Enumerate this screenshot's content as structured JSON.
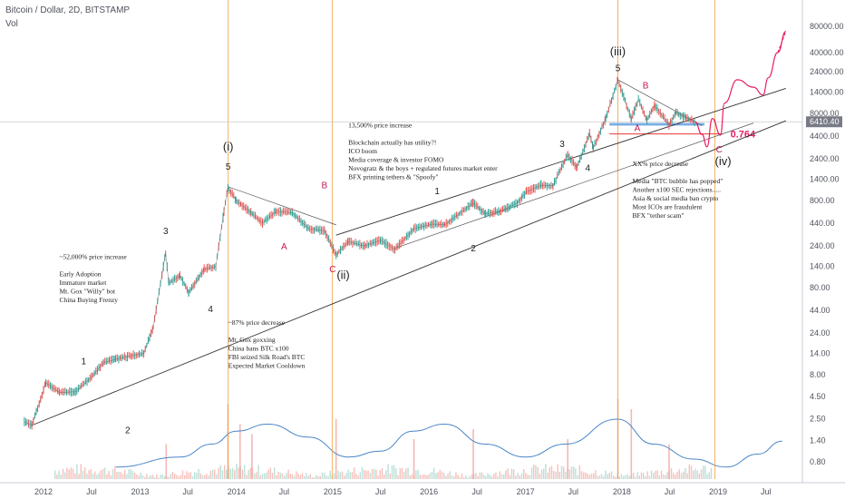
{
  "header": {
    "title": "Bitcoin / Dollar, 2D, BITSTAMP",
    "subtitle": "Vol"
  },
  "price_label": "6410.40",
  "chart_data": {
    "type": "line",
    "y_scale": "log",
    "y_ticks": [
      "80000.00",
      "40000.00",
      "24000.00",
      "14000.00",
      "8000.00",
      "4400.00",
      "2400.00",
      "1400.00",
      "800.00",
      "440.00",
      "240.00",
      "140.00",
      "80.00",
      "44.00",
      "24.00",
      "14.00",
      "8.00",
      "4.50",
      "2.50",
      "1.40",
      "0.80"
    ],
    "x_ticks": [
      "2012",
      "Jul",
      "2013",
      "Jul",
      "2014",
      "Jul",
      "2015",
      "Jul",
      "2016",
      "Jul",
      "2017",
      "Jul",
      "2018",
      "Jul",
      "2019",
      "Jul"
    ],
    "current_price": 6410.4,
    "series": [
      {
        "x": [
          "2011-10-20",
          "2011-11-18",
          "2012-01-10",
          "2012-03-01",
          "2012-05-01",
          "2012-07-01",
          "2012-08-15",
          "2012-10-01",
          "2012-12-01",
          "2013-01-15",
          "2013-02-20",
          "2013-04-08",
          "2013-04-20",
          "2013-06-01",
          "2013-07-05",
          "2013-09-01",
          "2013-10-15",
          "2013-11-15",
          "2013-11-30",
          "2014-01-01",
          "2014-02-25",
          "2014-04-10",
          "2014-06-01",
          "2014-08-01",
          "2014-10-01",
          "2014-12-01",
          "2015-01-14",
          "2015-03-01",
          "2015-05-01",
          "2015-07-01",
          "2015-08-25",
          "2015-11-05",
          "2016-01-15",
          "2016-03-01",
          "2016-06-17",
          "2016-08-02",
          "2016-10-01",
          "2016-12-01",
          "2017-01-04",
          "2017-03-01",
          "2017-04-15",
          "2017-06-10",
          "2017-07-15",
          "2017-09-01",
          "2017-09-15",
          "2017-11-01",
          "2017-12-17",
          "2018-02-06",
          "2018-03-05",
          "2018-04-06",
          "2018-05-05",
          "2018-06-29",
          "2018-07-25",
          "2018-09-01",
          "2018-10-05"
        ],
        "y": [
          2.3,
          2.1,
          6.5,
          5.0,
          5.1,
          7.5,
          11.0,
          12.0,
          13.3,
          14.0,
          28,
          200,
          90,
          110,
          70,
          130,
          140,
          600,
          1130,
          800,
          580,
          440,
          600,
          580,
          380,
          360,
          190,
          270,
          240,
          280,
          220,
          380,
          430,
          420,
          750,
          560,
          610,
          750,
          1000,
          1200,
          1180,
          2700,
          1900,
          4700,
          3200,
          7000,
          19500,
          6900,
          11500,
          6600,
          9900,
          5900,
          8200,
          7100,
          6410
        ]
      },
      {
        "name": "projection",
        "x": [
          "2018-10-05",
          "2018-11-01",
          "2018-11-20",
          "2018-12-10",
          "2019-01-10",
          "2019-01-25",
          "2019-03-15",
          "2019-05-15",
          "2019-06-20",
          "2019-07-10",
          "2019-08-15",
          "2019-09-15"
        ],
        "y": [
          6410,
          4600,
          3300,
          7000,
          4500,
          10500,
          19500,
          16000,
          13000,
          20500,
          40000,
          70000
        ]
      }
    ],
    "volume": [
      {
        "x": "2013-04-10",
        "v": 0.35
      },
      {
        "x": "2013-11-30",
        "v": 0.75
      },
      {
        "x": "2014-01-15",
        "v": 0.55
      },
      {
        "x": "2014-03-01",
        "v": 0.45
      },
      {
        "x": "2015-01-14",
        "v": 0.6
      },
      {
        "x": "2015-11-05",
        "v": 0.4
      },
      {
        "x": "2016-06-17",
        "v": 0.5
      },
      {
        "x": "2017-06-10",
        "v": 0.4
      },
      {
        "x": "2017-12-17",
        "v": 0.8
      },
      {
        "x": "2018-02-06",
        "v": 0.7
      },
      {
        "x": "2018-06-29",
        "v": 0.35
      }
    ],
    "volume_ma": {
      "x": [
        "2012-10-01",
        "2013-06-01",
        "2013-10-01",
        "2014-01-01",
        "2014-05-01",
        "2014-10-01",
        "2015-03-01",
        "2015-07-01",
        "2015-11-01",
        "2016-03-01",
        "2016-08-01",
        "2017-01-01",
        "2017-06-01",
        "2017-12-15",
        "2018-05-01",
        "2018-10-01",
        "2019-02-01",
        "2019-06-01",
        "2019-09-01"
      ],
      "v": [
        0.12,
        0.22,
        0.35,
        0.48,
        0.55,
        0.42,
        0.22,
        0.28,
        0.48,
        0.55,
        0.35,
        0.22,
        0.35,
        0.6,
        0.35,
        0.2,
        0.12,
        0.25,
        0.38
      ]
    },
    "vertical_markers": [
      "2013-12-01",
      "2014-12-30",
      "2017-12-17",
      "2018-12-20"
    ],
    "trendlines": [
      {
        "from": {
          "x": "2011-11-18",
          "y": 2.1
        },
        "to": {
          "x": "2019-09-15",
          "y": 6600
        }
      },
      {
        "from": {
          "x": "2015-01-14",
          "y": 320
        },
        "to": {
          "x": "2019-09-15",
          "y": 15500
        }
      },
      {
        "from": {
          "x": "2013-12-01",
          "y": 1150
        },
        "to": {
          "x": "2015-01-14",
          "y": 420
        }
      },
      {
        "from": {
          "x": "2015-09-01",
          "y": 230
        },
        "to": {
          "x": "2019-05-15",
          "y": 6200
        }
      },
      {
        "from": {
          "x": "2017-12-17",
          "y": 19500
        },
        "to": {
          "x": "2018-11-01",
          "y": 5800
        }
      }
    ],
    "levels": [
      {
        "y": 6000,
        "from": "2017-11-15",
        "to": "2018-11-10",
        "label": "0.764"
      },
      {
        "y": 4650,
        "from": "2017-11-15",
        "to": "2019-01-20"
      }
    ],
    "wave_labels": [
      {
        "text": "1",
        "x": "2012-06-01",
        "y": 10.5,
        "kind": "small"
      },
      {
        "text": "2",
        "x": "2012-11-15",
        "y": 1.7,
        "kind": "small"
      },
      {
        "text": "3",
        "x": "2013-04-08",
        "y": 330,
        "kind": "small"
      },
      {
        "text": "4",
        "x": "2013-09-25",
        "y": 42,
        "kind": "small"
      },
      {
        "text": "5",
        "x": "2013-12-01",
        "y": 1800,
        "kind": "small"
      },
      {
        "text": "(i)",
        "x": "2013-12-01",
        "y": 3000,
        "kind": "big"
      },
      {
        "text": "A",
        "x": "2014-07-01",
        "y": 220,
        "kind": "corr"
      },
      {
        "text": "B",
        "x": "2014-12-01",
        "y": 1100,
        "kind": "corr"
      },
      {
        "text": "C",
        "x": "2015-01-01",
        "y": 120,
        "kind": "corr"
      },
      {
        "text": "(ii)",
        "x": "2015-02-10",
        "y": 100,
        "kind": "big"
      },
      {
        "text": "1",
        "x": "2016-02-01",
        "y": 950,
        "kind": "small"
      },
      {
        "text": "2",
        "x": "2016-06-17",
        "y": 210,
        "kind": "small"
      },
      {
        "text": "3",
        "x": "2017-05-20",
        "y": 3300,
        "kind": "small"
      },
      {
        "text": "4",
        "x": "2017-08-25",
        "y": 1750,
        "kind": "small"
      },
      {
        "text": "5",
        "x": "2017-12-17",
        "y": 24500,
        "kind": "small"
      },
      {
        "text": "(iii)",
        "x": "2017-12-17",
        "y": 37000,
        "kind": "big"
      },
      {
        "text": "A",
        "x": "2018-03-01",
        "y": 5000,
        "kind": "corr"
      },
      {
        "text": "B",
        "x": "2018-04-01",
        "y": 15500,
        "kind": "corr"
      },
      {
        "text": "C",
        "x": "2019-01-05",
        "y": 2850,
        "kind": "corr"
      },
      {
        "text": "(iv)",
        "x": "2019-01-20",
        "y": 2050,
        "kind": "big"
      }
    ],
    "annotations": [
      {
        "lines": [
          "~52,000% price increase",
          "",
          "Early Adoption",
          "Immature market",
          "Mt. Gox \"Willy\" bot",
          "China Buying Frenzy"
        ],
        "x": "2012-03-01",
        "y": 170
      },
      {
        "lines": [
          "~87% price decrease",
          "",
          "Mt. Gox goxxing",
          "China bans BTC x100",
          "FBI seized Silk Road's BTC",
          "Expected Market Cooldown"
        ],
        "x": "2013-12-01",
        "y": 30
      },
      {
        "lines": [
          "13,500% price increase",
          "",
          "Blockchain actually has utility?!",
          "ICO boom",
          "Media coverage & investor FOMO",
          "Novogratz & the boys + regulated futures market enter",
          "BFX printing tethers & \"Spoofy\""
        ],
        "x": "2015-03-01",
        "y": 5500
      },
      {
        "lines": [
          "XX% price decrease",
          "",
          "Media \"BTC bubble has popped\"",
          "Another x100 SEC rejections.....",
          "Asia & social media ban crypto",
          "Most ICOs are fraudulent",
          "BFX \"tether scam\""
        ],
        "x": "2018-02-10",
        "y": 2000
      }
    ]
  }
}
